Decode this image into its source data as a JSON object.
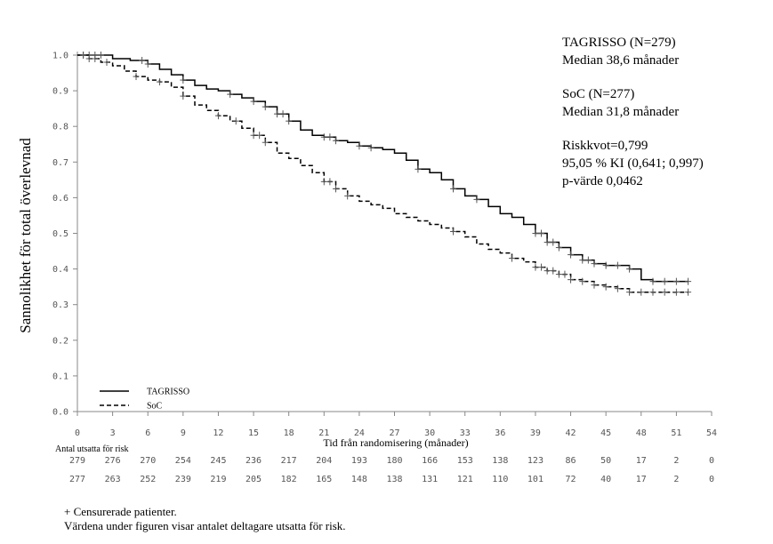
{
  "chart_data": {
    "type": "line",
    "title": "",
    "xlabel": "Tid från randomisering (månader)",
    "ylabel": "Sannolikhet för total överlevnad",
    "xlim": [
      0,
      54
    ],
    "ylim": [
      0,
      1
    ],
    "x_ticks": [
      0,
      3,
      6,
      9,
      12,
      15,
      18,
      21,
      24,
      27,
      30,
      33,
      36,
      39,
      42,
      45,
      48,
      51,
      54
    ],
    "y_ticks": [
      "0.0",
      "0.1",
      "0.2",
      "0.3",
      "0.4",
      "0.5",
      "0.6",
      "0.7",
      "0.8",
      "0.9",
      "1.0"
    ],
    "grid": false,
    "legend_position": "bottom-left",
    "series": [
      {
        "name": "TAGRISSO",
        "style": "solid",
        "points": [
          [
            0,
            1.0
          ],
          [
            1.5,
            1.0
          ],
          [
            3,
            0.99
          ],
          [
            4.5,
            0.985
          ],
          [
            6,
            0.975
          ],
          [
            7,
            0.96
          ],
          [
            8,
            0.945
          ],
          [
            9,
            0.93
          ],
          [
            10,
            0.915
          ],
          [
            11,
            0.905
          ],
          [
            12,
            0.9
          ],
          [
            13,
            0.89
          ],
          [
            14,
            0.88
          ],
          [
            15,
            0.87
          ],
          [
            16,
            0.855
          ],
          [
            17,
            0.835
          ],
          [
            18,
            0.815
          ],
          [
            19,
            0.79
          ],
          [
            20,
            0.775
          ],
          [
            21,
            0.77
          ],
          [
            22,
            0.76
          ],
          [
            23,
            0.755
          ],
          [
            24,
            0.745
          ],
          [
            25,
            0.74
          ],
          [
            26,
            0.735
          ],
          [
            27,
            0.725
          ],
          [
            28,
            0.705
          ],
          [
            29,
            0.68
          ],
          [
            30,
            0.67
          ],
          [
            31,
            0.65
          ],
          [
            32,
            0.625
          ],
          [
            33,
            0.605
          ],
          [
            34,
            0.595
          ],
          [
            35,
            0.575
          ],
          [
            36,
            0.555
          ],
          [
            37,
            0.545
          ],
          [
            38,
            0.525
          ],
          [
            39,
            0.5
          ],
          [
            40,
            0.475
          ],
          [
            41,
            0.46
          ],
          [
            42,
            0.44
          ],
          [
            43,
            0.425
          ],
          [
            44,
            0.415
          ],
          [
            45,
            0.41
          ],
          [
            46,
            0.41
          ],
          [
            47,
            0.4
          ],
          [
            48,
            0.37
          ],
          [
            49,
            0.365
          ],
          [
            50,
            0.365
          ],
          [
            51,
            0.365
          ],
          [
            52,
            0.365
          ]
        ],
        "censored_x": [
          0.5,
          1,
          1.5,
          2,
          5.5,
          6,
          9,
          13,
          15,
          16,
          17,
          17.5,
          18,
          21,
          21.5,
          22,
          24,
          25,
          29,
          32,
          34,
          39,
          39.5,
          40,
          40.5,
          41,
          42,
          43,
          43.5,
          44,
          45,
          46,
          47,
          49,
          50,
          51,
          52
        ]
      },
      {
        "name": "SoC",
        "style": "dashed",
        "points": [
          [
            0,
            1.0
          ],
          [
            1,
            0.99
          ],
          [
            2,
            0.98
          ],
          [
            3,
            0.97
          ],
          [
            4,
            0.955
          ],
          [
            5,
            0.94
          ],
          [
            6,
            0.93
          ],
          [
            7,
            0.925
          ],
          [
            8,
            0.91
          ],
          [
            9,
            0.885
          ],
          [
            10,
            0.86
          ],
          [
            11,
            0.845
          ],
          [
            12,
            0.83
          ],
          [
            13,
            0.815
          ],
          [
            14,
            0.795
          ],
          [
            15,
            0.775
          ],
          [
            16,
            0.755
          ],
          [
            17,
            0.725
          ],
          [
            18,
            0.71
          ],
          [
            19,
            0.69
          ],
          [
            20,
            0.67
          ],
          [
            21,
            0.645
          ],
          [
            22,
            0.625
          ],
          [
            23,
            0.605
          ],
          [
            24,
            0.59
          ],
          [
            25,
            0.58
          ],
          [
            26,
            0.57
          ],
          [
            27,
            0.555
          ],
          [
            28,
            0.545
          ],
          [
            29,
            0.535
          ],
          [
            30,
            0.525
          ],
          [
            31,
            0.515
          ],
          [
            32,
            0.505
          ],
          [
            33,
            0.49
          ],
          [
            34,
            0.47
          ],
          [
            35,
            0.455
          ],
          [
            36,
            0.445
          ],
          [
            37,
            0.43
          ],
          [
            38,
            0.42
          ],
          [
            39,
            0.405
          ],
          [
            40,
            0.395
          ],
          [
            41,
            0.385
          ],
          [
            42,
            0.37
          ],
          [
            43,
            0.365
          ],
          [
            44,
            0.355
          ],
          [
            45,
            0.35
          ],
          [
            46,
            0.345
          ],
          [
            47,
            0.335
          ],
          [
            48,
            0.335
          ],
          [
            49,
            0.335
          ],
          [
            50,
            0.335
          ],
          [
            51,
            0.335
          ],
          [
            52,
            0.335
          ]
        ],
        "censored_x": [
          0.5,
          1,
          1.5,
          2.5,
          5,
          7,
          9,
          12,
          13.5,
          15,
          15.5,
          16,
          21,
          21.5,
          22,
          23,
          32,
          37,
          39,
          39.5,
          40,
          40.5,
          41,
          41.5,
          42,
          43,
          44,
          45,
          46,
          47,
          48,
          49,
          50,
          51,
          52
        ]
      }
    ],
    "annotations": [
      "TAGRISSO (N=279)",
      "Median 38,6 månader",
      "SoC (N=277)",
      "Median 31,8 månader",
      "Riskkvot=0,799",
      "95,05 % KI (0,641; 0,997)",
      "p-värde 0,0462"
    ],
    "risk_table": {
      "label": "Antal utsatta för risk",
      "rows": [
        {
          "name": "TAGRISSO",
          "values": [
            "279",
            "276",
            "270",
            "254",
            "245",
            "236",
            "217",
            "204",
            "193",
            "180",
            "166",
            "153",
            "138",
            "123",
            "86",
            "50",
            "17",
            "2",
            "0"
          ]
        },
        {
          "name": "SoC",
          "values": [
            "277",
            "263",
            "252",
            "239",
            "219",
            "205",
            "182",
            "165",
            "148",
            "138",
            "131",
            "121",
            "110",
            "101",
            "72",
            "40",
            "17",
            "2",
            "0"
          ]
        }
      ]
    },
    "footnotes": [
      "+ Censurerade patienter.",
      "Värdena under figuren visar antalet deltagare utsatta för risk."
    ],
    "colors": {
      "line": "#000000",
      "censor": "#555555",
      "axis": "#888888"
    }
  }
}
